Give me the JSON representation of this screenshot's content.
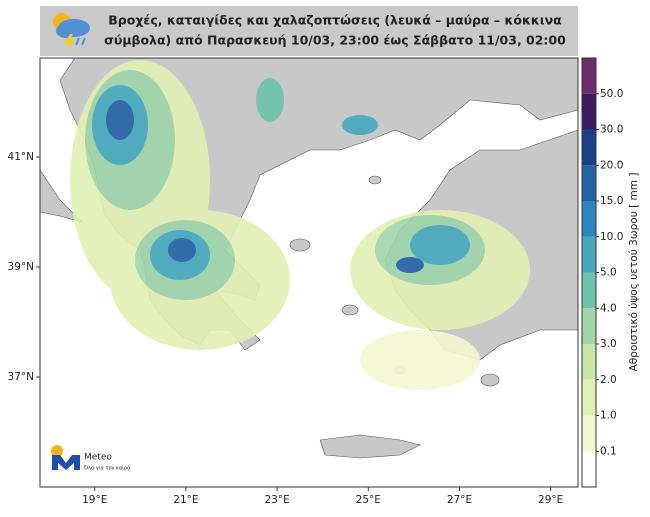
{
  "header": {
    "title_lines": [
      "Βροχές, καταιγίδες και χαλαζοπτώσεις (λευκά – μαύρα – κόκκινα",
      "σύμβολα) από Παρασκευή 10/03, 23:00 έως Σάββατο 11/03, 02:00"
    ]
  },
  "map": {
    "xlim": [
      17.8,
      29.6
    ],
    "ylim": [
      35.0,
      42.8
    ],
    "xticks": [
      {
        "value": 19,
        "label": "19°E"
      },
      {
        "value": 21,
        "label": "21°E"
      },
      {
        "value": 23,
        "label": "23°E"
      },
      {
        "value": 25,
        "label": "25°E"
      },
      {
        "value": 27,
        "label": "27°E"
      },
      {
        "value": 29,
        "label": "29°E"
      }
    ],
    "yticks": [
      {
        "value": 37,
        "label": "37°N"
      },
      {
        "value": 39,
        "label": "39°N"
      },
      {
        "value": 41,
        "label": "41°N"
      }
    ]
  },
  "colorbar": {
    "label": "Αθροιστικό ύψος υετού 3ωρου [ mm ]",
    "ticks": [
      0.1,
      {
        "value": 1,
        "label": "1.0"
      },
      {
        "value": 2,
        "label": "2.0"
      },
      {
        "value": 3,
        "label": "3.0"
      },
      {
        "value": 4,
        "label": "4.0"
      },
      {
        "value": 5,
        "label": "5.0"
      },
      {
        "value": 10,
        "label": "10.0"
      },
      {
        "value": 15,
        "label": "15.0"
      },
      {
        "value": 20,
        "label": "20.0"
      },
      {
        "value": 30,
        "label": "30.0"
      },
      {
        "value": 50,
        "label": "50.0"
      }
    ],
    "colors": [
      "#ffffff",
      "#f4f8d2",
      "#e2f0b4",
      "#c7e6a8",
      "#9fd5a9",
      "#6cc3aa",
      "#45a8bf",
      "#2f85bf",
      "#2462a8",
      "#1c3f89",
      "#3b1b5d",
      "#6b2d6b"
    ]
  },
  "logo": {
    "name": "Meteo",
    "slogan": "Όλα για τον καιρό"
  }
}
